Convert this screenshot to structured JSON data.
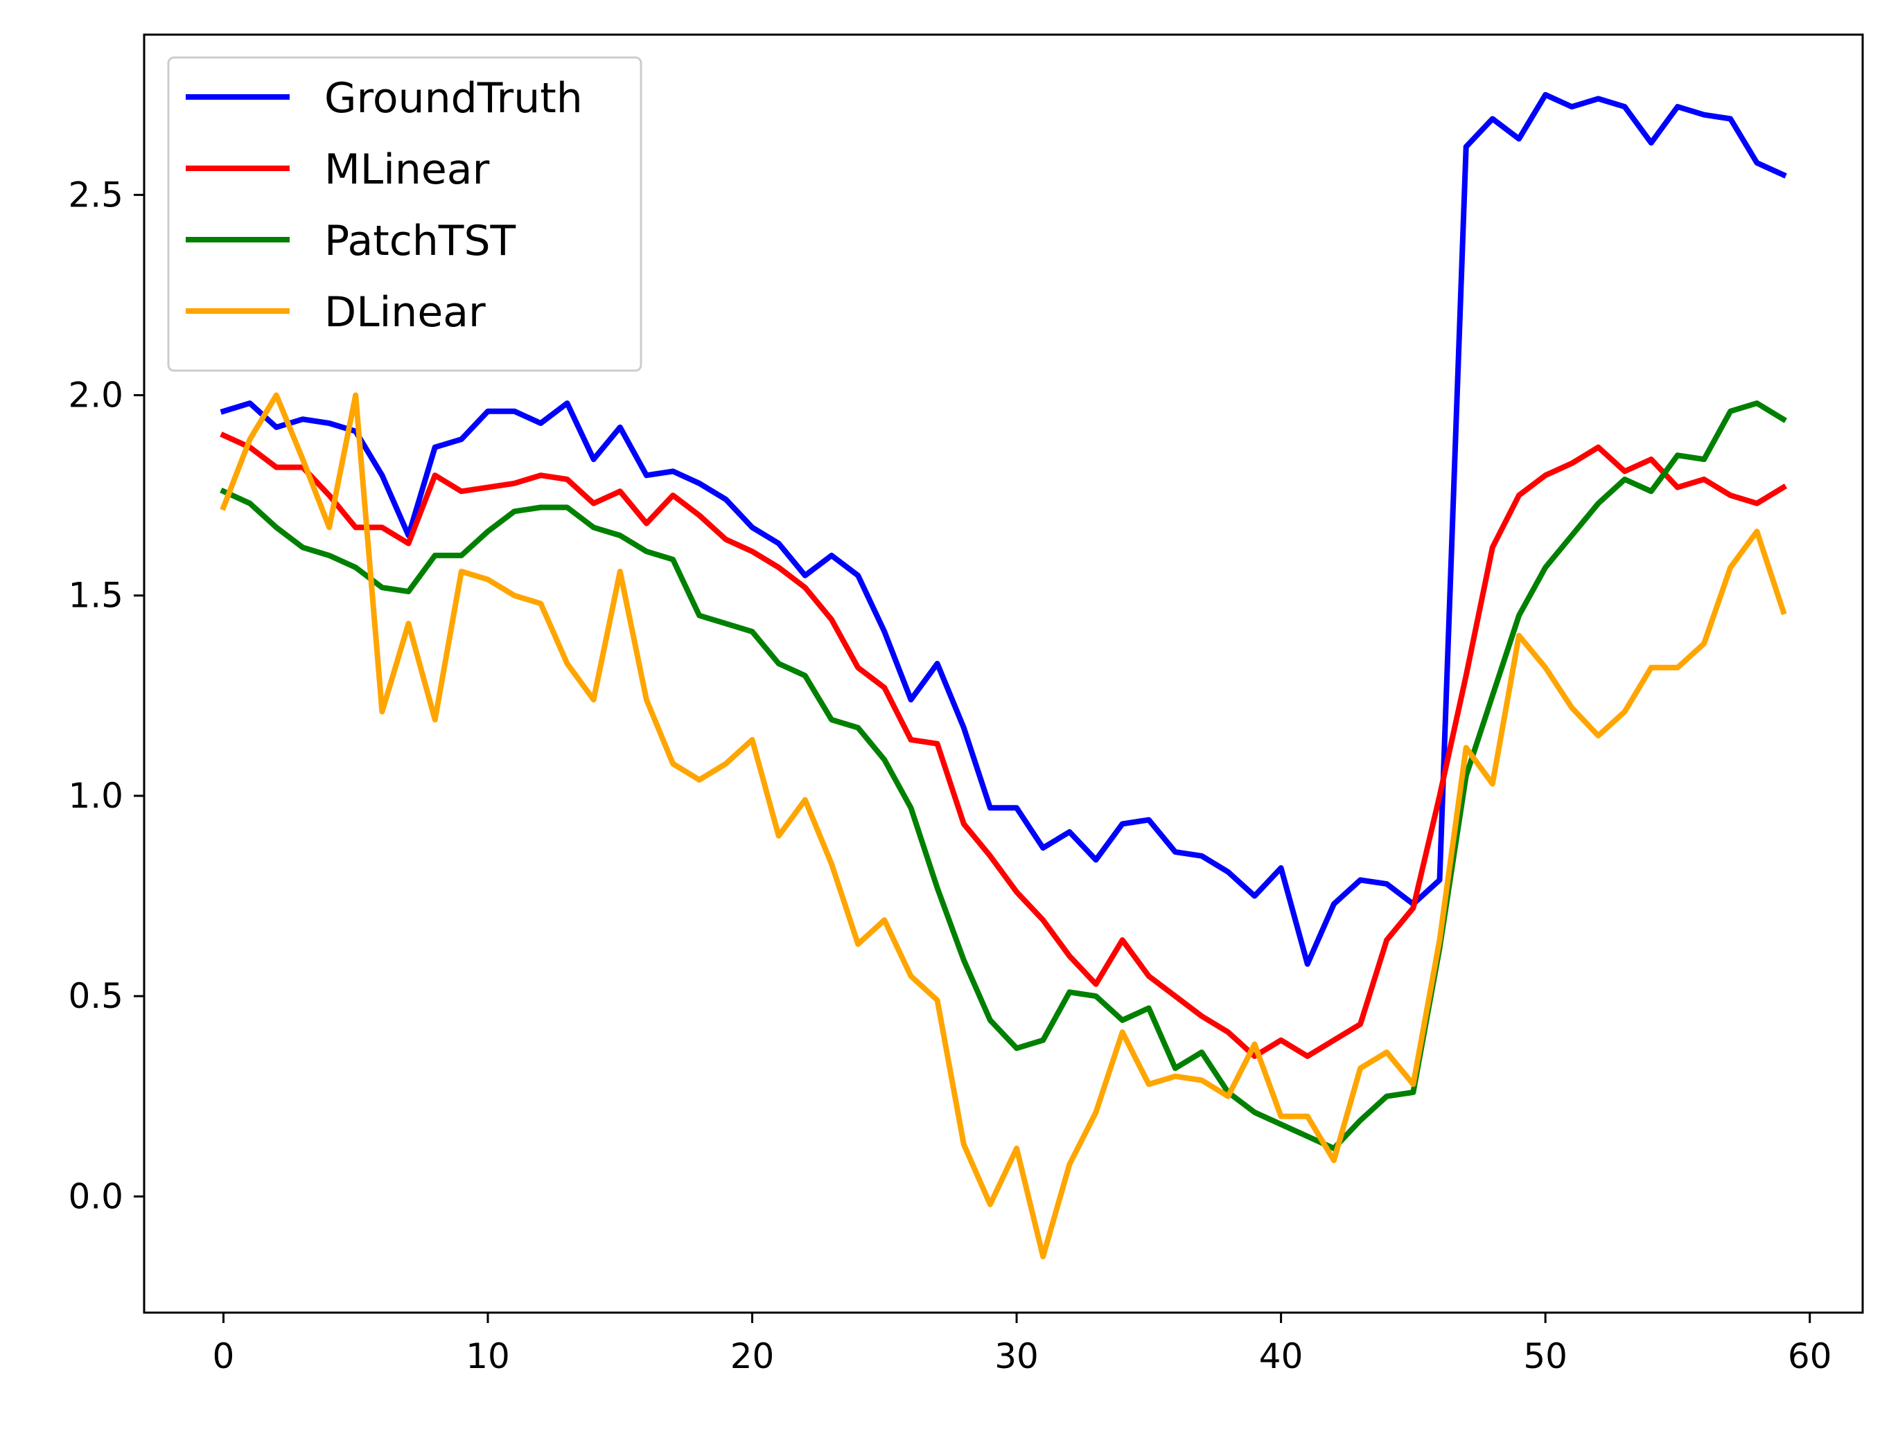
{
  "chart_data": {
    "type": "line",
    "title": "",
    "xlabel": "",
    "ylabel": "",
    "xlim": [
      -3,
      62
    ],
    "ylim": [
      -0.29,
      2.9
    ],
    "xticks": [
      0,
      10,
      20,
      30,
      40,
      50,
      60
    ],
    "xtick_labels": [
      "0",
      "10",
      "20",
      "30",
      "40",
      "50",
      "60"
    ],
    "yticks": [
      0.0,
      0.5,
      1.0,
      1.5,
      2.0,
      2.5
    ],
    "ytick_labels": [
      "0.0",
      "0.5",
      "1.0",
      "1.5",
      "2.0",
      "2.5"
    ],
    "grid": false,
    "legend_position": "top-left",
    "x": [
      0,
      1,
      2,
      3,
      4,
      5,
      6,
      7,
      8,
      9,
      10,
      11,
      12,
      13,
      14,
      15,
      16,
      17,
      18,
      19,
      20,
      21,
      22,
      23,
      24,
      25,
      26,
      27,
      28,
      29,
      30,
      31,
      32,
      33,
      34,
      35,
      36,
      37,
      38,
      39,
      40,
      41,
      42,
      43,
      44,
      45,
      46,
      47,
      48,
      49,
      50,
      51,
      52,
      53,
      54,
      55,
      56,
      57,
      58,
      59
    ],
    "series": [
      {
        "name": "GroundTruth",
        "color": "#0000ff",
        "values": [
          1.96,
          1.98,
          1.92,
          1.94,
          1.93,
          1.91,
          1.8,
          1.65,
          1.87,
          1.89,
          1.96,
          1.96,
          1.93,
          1.98,
          1.84,
          1.92,
          1.8,
          1.81,
          1.78,
          1.74,
          1.67,
          1.63,
          1.55,
          1.6,
          1.55,
          1.41,
          1.24,
          1.33,
          1.17,
          0.97,
          0.97,
          0.87,
          0.91,
          0.84,
          0.93,
          0.94,
          0.86,
          0.85,
          0.81,
          0.75,
          0.82,
          0.58,
          0.73,
          0.79,
          0.78,
          0.73,
          0.79,
          2.62,
          2.69,
          2.64,
          2.75,
          2.72,
          2.74,
          2.72,
          2.63,
          2.72,
          2.7,
          2.69,
          2.58,
          2.55
        ]
      },
      {
        "name": "MLinear",
        "color": "#ff0000",
        "values": [
          1.9,
          1.87,
          1.82,
          1.82,
          1.75,
          1.67,
          1.67,
          1.63,
          1.8,
          1.76,
          1.77,
          1.78,
          1.8,
          1.79,
          1.73,
          1.76,
          1.68,
          1.75,
          1.7,
          1.64,
          1.61,
          1.57,
          1.52,
          1.44,
          1.32,
          1.27,
          1.14,
          1.13,
          0.93,
          0.85,
          0.76,
          0.69,
          0.6,
          0.53,
          0.64,
          0.55,
          0.5,
          0.45,
          0.41,
          0.35,
          0.39,
          0.35,
          0.39,
          0.43,
          0.64,
          0.72,
          1.0,
          1.3,
          1.62,
          1.75,
          1.8,
          1.83,
          1.87,
          1.81,
          1.84,
          1.77,
          1.79,
          1.75,
          1.73,
          1.77
        ]
      },
      {
        "name": "PatchTST",
        "color": "#008000",
        "values": [
          1.76,
          1.73,
          1.67,
          1.62,
          1.6,
          1.57,
          1.52,
          1.51,
          1.6,
          1.6,
          1.66,
          1.71,
          1.72,
          1.72,
          1.67,
          1.65,
          1.61,
          1.59,
          1.45,
          1.43,
          1.41,
          1.33,
          1.3,
          1.19,
          1.17,
          1.09,
          0.97,
          0.77,
          0.59,
          0.44,
          0.37,
          0.39,
          0.51,
          0.5,
          0.44,
          0.47,
          0.32,
          0.36,
          0.26,
          0.21,
          0.18,
          0.15,
          0.12,
          0.19,
          0.25,
          0.26,
          0.62,
          1.05,
          1.25,
          1.45,
          1.57,
          1.65,
          1.73,
          1.79,
          1.76,
          1.85,
          1.84,
          1.96,
          1.98,
          1.94
        ]
      },
      {
        "name": "DLinear",
        "color": "#ffa500",
        "values": [
          1.72,
          1.89,
          2.0,
          1.84,
          1.67,
          2.0,
          1.21,
          1.43,
          1.19,
          1.56,
          1.54,
          1.5,
          1.48,
          1.33,
          1.24,
          1.56,
          1.24,
          1.08,
          1.04,
          1.08,
          1.14,
          0.9,
          0.99,
          0.83,
          0.63,
          0.69,
          0.55,
          0.49,
          0.13,
          -0.02,
          0.12,
          -0.15,
          0.08,
          0.21,
          0.41,
          0.28,
          0.3,
          0.29,
          0.25,
          0.38,
          0.2,
          0.2,
          0.09,
          0.32,
          0.36,
          0.28,
          0.64,
          1.12,
          1.03,
          1.4,
          1.32,
          1.22,
          1.15,
          1.21,
          1.32,
          1.32,
          1.38,
          1.57,
          1.66,
          1.46
        ]
      }
    ]
  }
}
